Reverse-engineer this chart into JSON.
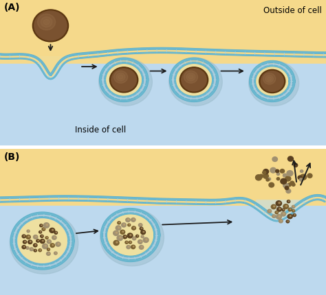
{
  "title_A": "(A)",
  "title_B": "(B)",
  "outside_label": "Outside of cell",
  "inside_label": "Inside of cell",
  "bg_outside_color": "#F5D98B",
  "bg_inside_color": "#BDD9EE",
  "membrane_outer_color": "#6BB8D0",
  "membrane_inner_color": "#5AAFC8",
  "membrane_tick_color": "#A8D4E0",
  "vesicle_lumen_color": "#EEE0A0",
  "cargo_dark": "#5A3510",
  "cargo_mid": "#7A5230",
  "cargo_light": "#A07850",
  "small_dot_color": "#7A6030",
  "small_dot_dark": "#5A4020",
  "arrow_color": "#1A1A1A",
  "label_fontsize": 8.5,
  "panel_label_fontsize": 10,
  "outside_label_fontsize": 8.5
}
